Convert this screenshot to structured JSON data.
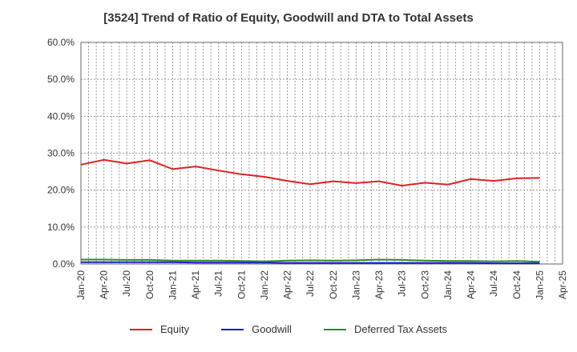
{
  "chart_data": {
    "type": "line",
    "title": "[3524]  Trend of Ratio of Equity, Goodwill and DTA to Total Assets",
    "xlabel": "",
    "ylabel": "",
    "ylim": [
      0,
      60
    ],
    "y_ticks": [
      "0.0%",
      "10.0%",
      "20.0%",
      "30.0%",
      "40.0%",
      "50.0%",
      "60.0%"
    ],
    "y_tick_values": [
      0,
      10,
      20,
      30,
      40,
      50,
      60
    ],
    "x_tick_labels": [
      "Jan-20",
      "Apr-20",
      "Jul-20",
      "Oct-20",
      "Jan-21",
      "Apr-21",
      "Jul-21",
      "Oct-21",
      "Jan-22",
      "Apr-22",
      "Jul-22",
      "Oct-22",
      "Jan-23",
      "Apr-23",
      "Jul-23",
      "Oct-23",
      "Jan-24",
      "Apr-24",
      "Jul-24",
      "Oct-24",
      "Jan-25",
      "Apr-25"
    ],
    "grid": true,
    "legend_position": "bottom",
    "series": [
      {
        "name": "Equity",
        "color": "#e02020",
        "values": [
          26.9,
          28.2,
          27.2,
          28.1,
          25.7,
          26.4,
          25.3,
          24.3,
          23.6,
          22.5,
          21.6,
          22.4,
          21.9,
          22.4,
          21.2,
          22.0,
          21.5,
          23.0,
          22.5,
          23.2,
          23.3
        ]
      },
      {
        "name": "Goodwill",
        "color": "#1a1acc",
        "values": [
          0.5,
          0.5,
          0.5,
          0.5,
          0.5,
          0.4,
          0.4,
          0.4,
          0.4,
          0.3,
          0.3,
          0.3,
          0.3,
          0.3,
          0.3,
          0.3,
          0.3,
          0.3,
          0.2,
          0.2,
          0.2
        ]
      },
      {
        "name": "Deferred Tax Assets",
        "color": "#2a8a2a",
        "values": [
          1.2,
          1.2,
          1.1,
          1.1,
          0.9,
          0.9,
          0.9,
          0.8,
          0.7,
          0.9,
          1.0,
          0.9,
          1.0,
          1.2,
          1.1,
          0.9,
          0.8,
          0.8,
          0.7,
          0.8,
          0.6
        ]
      }
    ]
  }
}
